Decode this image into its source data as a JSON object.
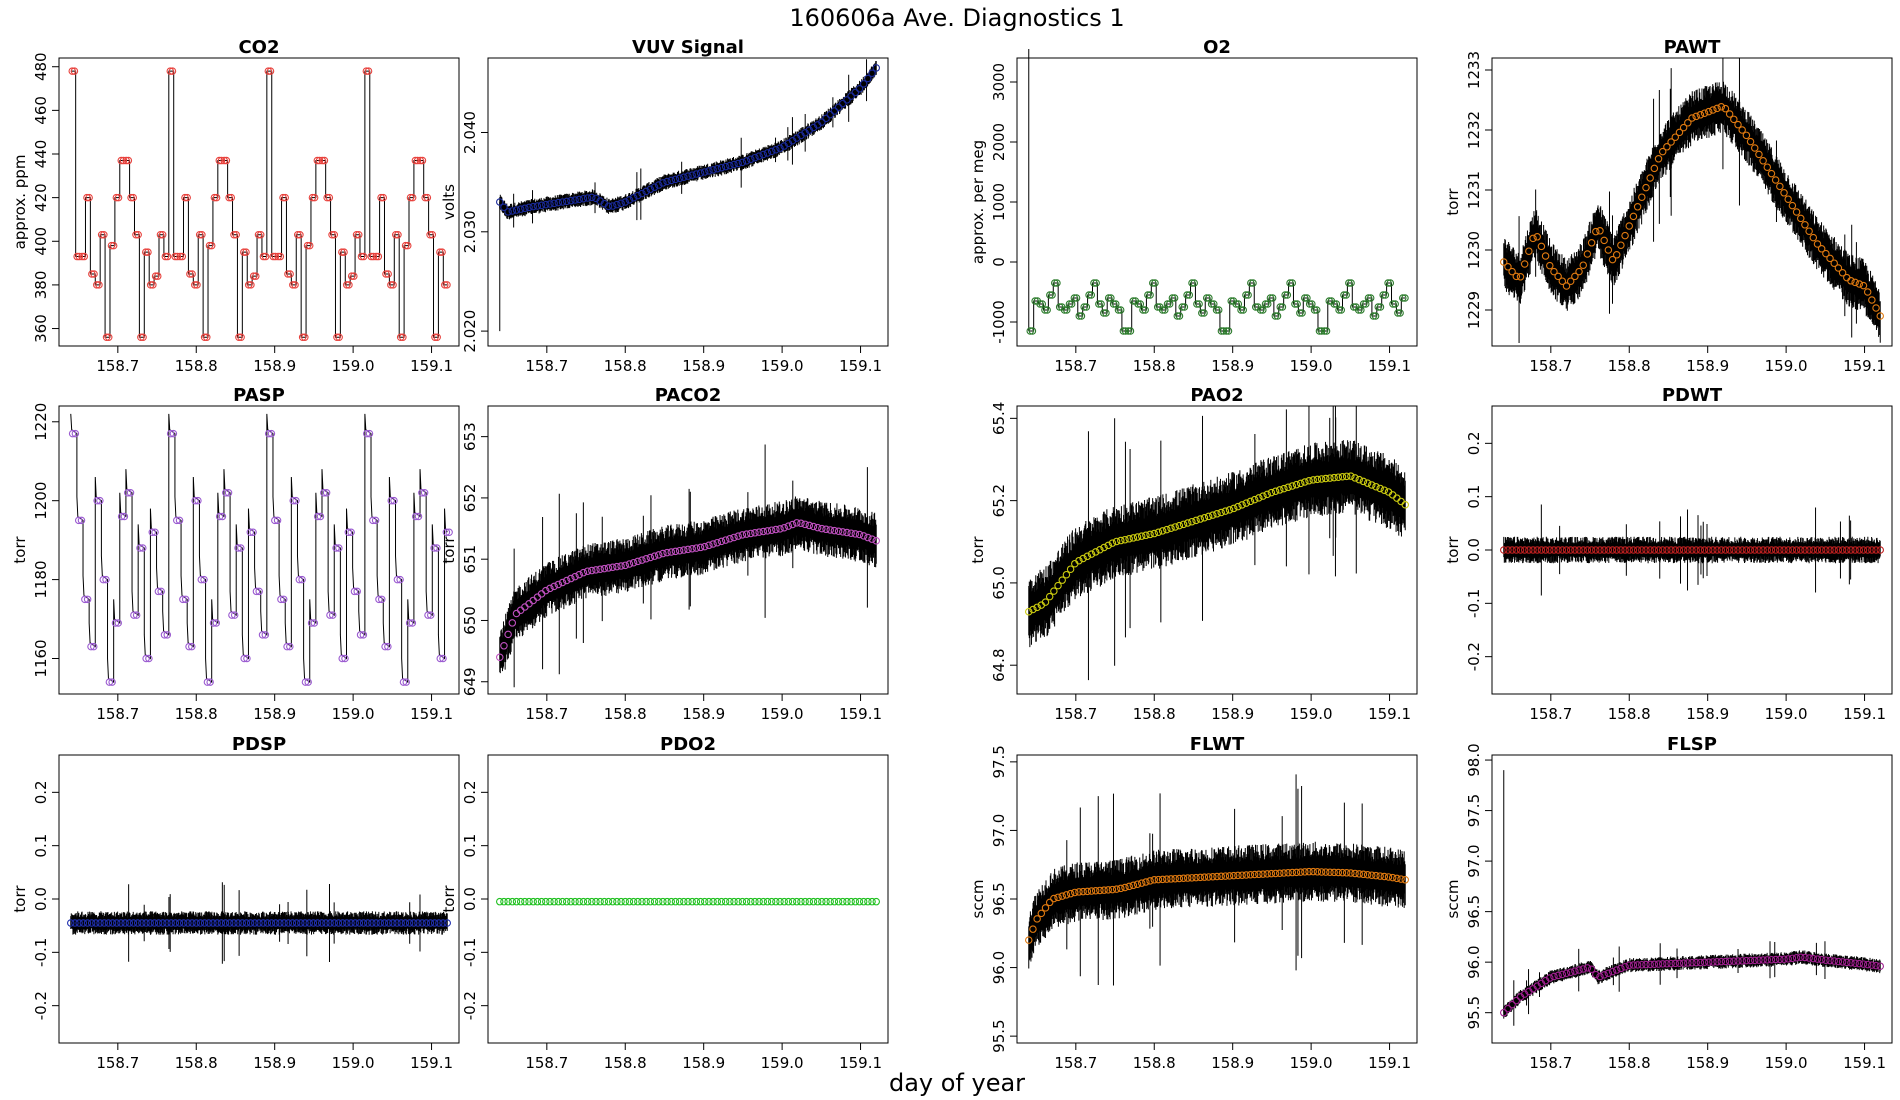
{
  "figure": {
    "title": "160606a   Ave. Diagnostics 1",
    "xlabel": "day of year"
  },
  "chart_data": [
    {
      "type": "line",
      "title": "CO2",
      "ylabel": "approx. ppm",
      "xlim": [
        158.625,
        159.135
      ],
      "ylim": [
        352,
        484
      ],
      "xticks": [
        158.7,
        158.8,
        158.9,
        159.0,
        159.1
      ],
      "xtick_labels": [
        "158.7",
        "158.8",
        "158.9",
        "159.0",
        "159.1"
      ],
      "yticks": [
        360,
        380,
        400,
        420,
        440,
        460,
        480
      ],
      "ytick_labels": [
        "360",
        "380",
        "400",
        "420",
        "440",
        "460",
        "480"
      ],
      "marker_color": "#e8413c",
      "style": "step",
      "raw_start": 158.64,
      "raw_end": 159.12,
      "pattern": [
        478,
        393,
        393,
        420,
        385,
        380,
        403,
        356,
        398,
        420,
        437,
        437,
        420,
        403,
        356,
        395,
        380,
        384,
        403,
        393
      ],
      "period_days": 0.125
    },
    {
      "type": "line",
      "title": "VUV Signal",
      "ylabel": "volts",
      "xlim": [
        158.625,
        159.135
      ],
      "ylim": [
        2.0185,
        2.0475
      ],
      "xticks": [
        158.7,
        158.8,
        158.9,
        159.0,
        159.1
      ],
      "xtick_labels": [
        "158.7",
        "158.8",
        "158.9",
        "159.0",
        "159.1"
      ],
      "yticks": [
        2.02,
        2.03,
        2.04
      ],
      "ytick_labels": [
        "2.020",
        "2.030",
        "2.040"
      ],
      "marker_color": "#1a2a9a",
      "style": "band",
      "raw_start": 158.64,
      "raw_end": 159.12,
      "curve": {
        "x": [
          158.64,
          158.65,
          158.68,
          158.72,
          158.76,
          158.78,
          158.8,
          158.85,
          158.9,
          158.95,
          159.0,
          159.05,
          159.1,
          159.12
        ],
        "y": [
          2.033,
          2.032,
          2.0325,
          2.033,
          2.0335,
          2.0325,
          2.033,
          2.035,
          2.036,
          2.037,
          2.0385,
          2.041,
          2.0445,
          2.0465
        ]
      },
      "noise": 0.0008,
      "spike": {
        "x": 158.64,
        "low": 2.02,
        "high": 2.033
      }
    },
    {
      "type": "line",
      "title": "O2",
      "ylabel": "approx. per meg",
      "xlim": [
        158.625,
        159.135
      ],
      "ylim": [
        -1400,
        3400
      ],
      "xticks": [
        158.7,
        158.8,
        158.9,
        159.0,
        159.1
      ],
      "xtick_labels": [
        "158.7",
        "158.8",
        "158.9",
        "159.0",
        "159.1"
      ],
      "yticks": [
        -1000,
        0,
        1000,
        2000,
        3000
      ],
      "ytick_labels": [
        "-1000",
        "0",
        "1000",
        "2000",
        "3000"
      ],
      "marker_color": "#2a7a2a",
      "style": "step",
      "raw_start": 158.64,
      "raw_end": 159.12,
      "pattern": [
        -1150,
        -650,
        -700,
        -800,
        -550,
        -350,
        -750,
        -800,
        -700,
        -600,
        -900,
        -750,
        -550,
        -350,
        -700,
        -850,
        -600,
        -700,
        -800,
        -1150
      ],
      "period_days": 0.125,
      "spike": {
        "x": 158.64,
        "low": -1150,
        "high": 3550
      }
    },
    {
      "type": "line",
      "title": "PAWT",
      "ylabel": "torr",
      "xlim": [
        158.625,
        159.135
      ],
      "ylim": [
        1228.4,
        1233.2
      ],
      "xticks": [
        158.7,
        158.8,
        158.9,
        159.0,
        159.1
      ],
      "xtick_labels": [
        "158.7",
        "158.8",
        "158.9",
        "159.0",
        "159.1"
      ],
      "yticks": [
        1229,
        1230,
        1231,
        1232,
        1233
      ],
      "ytick_labels": [
        "1229",
        "1230",
        "1231",
        "1232",
        "1233"
      ],
      "marker_color": "#e07a10",
      "style": "band",
      "raw_start": 158.64,
      "raw_end": 159.12,
      "curve": {
        "x": [
          158.64,
          158.66,
          158.68,
          158.7,
          158.72,
          158.74,
          158.76,
          158.78,
          158.8,
          158.84,
          158.88,
          158.92,
          158.95,
          159.0,
          159.04,
          159.08,
          159.1,
          159.12
        ],
        "y": [
          1229.8,
          1229.5,
          1230.3,
          1229.7,
          1229.4,
          1229.7,
          1230.4,
          1229.8,
          1230.4,
          1231.6,
          1232.2,
          1232.4,
          1231.9,
          1230.9,
          1230.1,
          1229.5,
          1229.4,
          1228.9
        ]
      },
      "noise": 0.45
    },
    {
      "type": "line",
      "title": "PASP",
      "ylabel": "torr",
      "xlim": [
        158.625,
        159.135
      ],
      "ylim": [
        1151,
        1224
      ],
      "xticks": [
        158.7,
        158.8,
        158.9,
        159.0,
        159.1
      ],
      "xtick_labels": [
        "158.7",
        "158.8",
        "158.9",
        "159.0",
        "159.1"
      ],
      "yticks": [
        1160,
        1180,
        1200,
        1220
      ],
      "ytick_labels": [
        "1160",
        "1180",
        "1200",
        "1220"
      ],
      "marker_color": "#9a5ad0",
      "style": "sawtooth",
      "raw_start": 158.64,
      "raw_end": 159.12,
      "pattern": [
        1217,
        1195,
        1175,
        1163,
        1200,
        1180,
        1154,
        1169,
        1196,
        1202,
        1171,
        1188,
        1160,
        1192,
        1177,
        1166
      ],
      "period_days": 0.125
    },
    {
      "type": "line",
      "title": "PACO2",
      "ylabel": "torr",
      "xlim": [
        158.625,
        159.135
      ],
      "ylim": [
        648.8,
        653.5
      ],
      "xticks": [
        158.7,
        158.8,
        158.9,
        159.0,
        159.1
      ],
      "xtick_labels": [
        "158.7",
        "158.8",
        "158.9",
        "159.0",
        "159.1"
      ],
      "yticks": [
        649,
        650,
        651,
        652,
        653
      ],
      "ytick_labels": [
        "649",
        "650",
        "651",
        "652",
        "653"
      ],
      "marker_color": "#c050c0",
      "style": "band",
      "raw_start": 158.64,
      "raw_end": 159.12,
      "curve": {
        "x": [
          158.64,
          158.66,
          158.7,
          158.75,
          158.8,
          158.85,
          158.9,
          158.95,
          159.0,
          159.02,
          159.05,
          159.1,
          159.12
        ],
        "y": [
          649.4,
          650.1,
          650.5,
          650.8,
          650.9,
          651.1,
          651.2,
          651.4,
          651.5,
          651.6,
          651.5,
          651.4,
          651.3
        ]
      },
      "noise": 0.45
    },
    {
      "type": "line",
      "title": "PAO2",
      "ylabel": "torr",
      "xlim": [
        158.625,
        159.135
      ],
      "ylim": [
        64.73,
        65.43
      ],
      "xticks": [
        158.7,
        158.8,
        158.9,
        159.0,
        159.1
      ],
      "xtick_labels": [
        "158.7",
        "158.8",
        "158.9",
        "159.0",
        "159.1"
      ],
      "yticks": [
        64.8,
        65.0,
        65.2,
        65.4
      ],
      "ytick_labels": [
        "64.8",
        "65.0",
        "65.2",
        "65.4"
      ],
      "marker_color": "#cccc10",
      "style": "band",
      "raw_start": 158.64,
      "raw_end": 159.12,
      "curve": {
        "x": [
          158.64,
          158.66,
          158.7,
          158.75,
          158.8,
          158.85,
          158.9,
          158.95,
          159.0,
          159.05,
          159.1,
          159.12
        ],
        "y": [
          64.93,
          64.95,
          65.05,
          65.1,
          65.12,
          65.15,
          65.18,
          65.22,
          65.25,
          65.26,
          65.22,
          65.19
        ]
      },
      "noise": 0.09
    },
    {
      "type": "line",
      "title": "PDWT",
      "ylabel": "torr",
      "xlim": [
        158.625,
        159.135
      ],
      "ylim": [
        -0.27,
        0.27
      ],
      "xticks": [
        158.7,
        158.8,
        158.9,
        159.0,
        159.1
      ],
      "xtick_labels": [
        "158.7",
        "158.8",
        "158.9",
        "159.0",
        "159.1"
      ],
      "yticks": [
        -0.2,
        -0.1,
        0.0,
        0.1,
        0.2
      ],
      "ytick_labels": [
        "-0.2",
        "-0.1",
        "0.0",
        "0.1",
        "0.2"
      ],
      "marker_color": "#c02020",
      "style": "band",
      "raw_start": 158.64,
      "raw_end": 159.12,
      "curve": {
        "x": [
          158.64,
          159.12
        ],
        "y": [
          0.0,
          0.0
        ]
      },
      "noise": 0.025
    },
    {
      "type": "line",
      "title": "PDSP",
      "ylabel": "torr",
      "xlim": [
        158.625,
        159.135
      ],
      "ylim": [
        -0.27,
        0.27
      ],
      "xticks": [
        158.7,
        158.8,
        158.9,
        159.0,
        159.1
      ],
      "xtick_labels": [
        "158.7",
        "158.8",
        "158.9",
        "159.0",
        "159.1"
      ],
      "yticks": [
        -0.2,
        -0.1,
        0.0,
        0.1,
        0.2
      ],
      "ytick_labels": [
        "-0.2",
        "-0.1",
        "0.0",
        "0.1",
        "0.2"
      ],
      "marker_color": "#2030b0",
      "style": "band",
      "raw_start": 158.64,
      "raw_end": 159.12,
      "curve": {
        "x": [
          158.64,
          159.12
        ],
        "y": [
          -0.045,
          -0.045
        ]
      },
      "noise": 0.022
    },
    {
      "type": "line",
      "title": "PDO2",
      "ylabel": "torr",
      "xlim": [
        158.625,
        159.135
      ],
      "ylim": [
        -0.27,
        0.27
      ],
      "xticks": [
        158.7,
        158.8,
        158.9,
        159.0,
        159.1
      ],
      "xtick_labels": [
        "158.7",
        "158.8",
        "158.9",
        "159.0",
        "159.1"
      ],
      "yticks": [
        -0.2,
        -0.1,
        0.0,
        0.1,
        0.2
      ],
      "ytick_labels": [
        "-0.2",
        "-0.1",
        "0.0",
        "0.1",
        "0.2"
      ],
      "marker_color": "#20c020",
      "style": "band",
      "raw_start": 158.64,
      "raw_end": 159.12,
      "curve": {
        "x": [
          158.64,
          159.12
        ],
        "y": [
          -0.005,
          -0.005
        ]
      },
      "noise": 0.0
    },
    {
      "type": "line",
      "title": "FLWT",
      "ylabel": "sccm",
      "xlim": [
        158.625,
        159.135
      ],
      "ylim": [
        95.45,
        97.55
      ],
      "xticks": [
        158.7,
        158.8,
        158.9,
        159.0,
        159.1
      ],
      "xtick_labels": [
        "158.7",
        "158.8",
        "158.9",
        "159.0",
        "159.1"
      ],
      "yticks": [
        95.5,
        96.0,
        96.5,
        97.0,
        97.5
      ],
      "ytick_labels": [
        "95.5",
        "96.0",
        "96.5",
        "97.0",
        "97.5"
      ],
      "marker_color": "#e07a10",
      "style": "band",
      "raw_start": 158.64,
      "raw_end": 159.12,
      "curve": {
        "x": [
          158.64,
          158.65,
          158.67,
          158.7,
          158.75,
          158.76,
          158.8,
          158.9,
          159.0,
          159.05,
          159.1,
          159.12
        ],
        "y": [
          96.2,
          96.35,
          96.5,
          96.55,
          96.57,
          96.58,
          96.64,
          96.67,
          96.7,
          96.69,
          96.66,
          96.64
        ]
      },
      "noise": 0.22
    },
    {
      "type": "line",
      "title": "FLSP",
      "ylabel": "sccm",
      "xlim": [
        158.625,
        159.135
      ],
      "ylim": [
        95.2,
        98.05
      ],
      "xticks": [
        158.7,
        158.8,
        158.9,
        159.0,
        159.1
      ],
      "xtick_labels": [
        "158.7",
        "158.8",
        "158.9",
        "159.0",
        "159.1"
      ],
      "yticks": [
        95.5,
        96.0,
        96.5,
        97.0,
        97.5,
        98.0
      ],
      "ytick_labels": [
        "95.5",
        "96.0",
        "96.5",
        "97.0",
        "97.5",
        "98.0"
      ],
      "marker_color": "#a02090",
      "style": "band",
      "raw_start": 158.64,
      "raw_end": 159.12,
      "curve": {
        "x": [
          158.64,
          158.66,
          158.7,
          158.75,
          158.76,
          158.8,
          158.9,
          159.0,
          159.02,
          159.05,
          159.1,
          159.12
        ],
        "y": [
          95.5,
          95.65,
          95.85,
          95.95,
          95.85,
          95.97,
          96.0,
          96.03,
          96.05,
          96.02,
          95.98,
          95.96
        ]
      },
      "noise": 0.07,
      "spike": {
        "x": 158.64,
        "low": 95.5,
        "high": 97.9
      }
    }
  ]
}
